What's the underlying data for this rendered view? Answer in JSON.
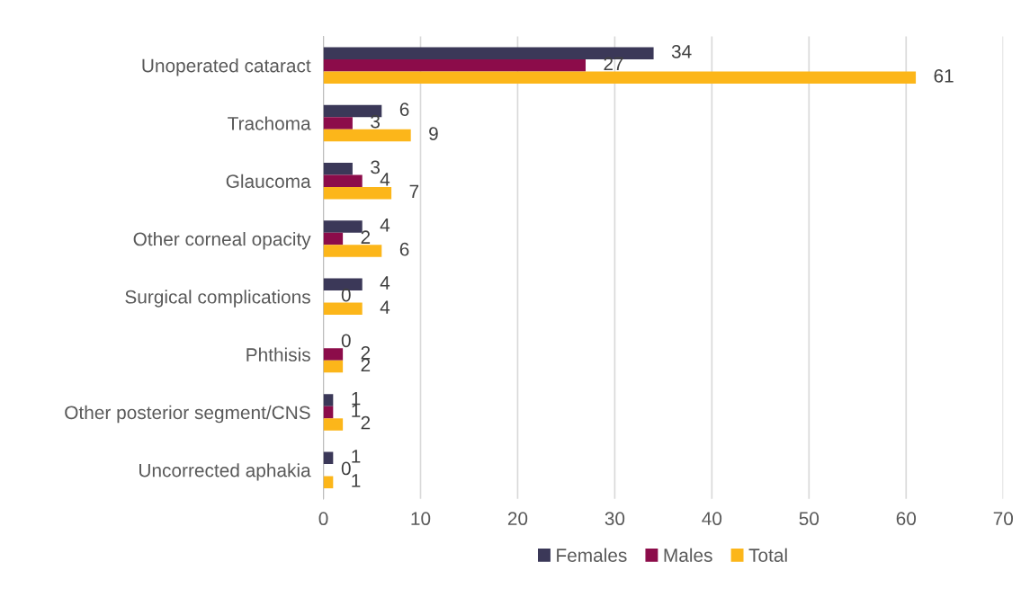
{
  "chart_data": {
    "type": "bar",
    "orientation": "horizontal",
    "categories": [
      "Unoperated cataract",
      "Trachoma",
      "Glaucoma",
      "Other corneal opacity",
      "Surgical complications",
      "Phthisis",
      "Other posterior segment/CNS",
      "Uncorrected aphakia"
    ],
    "series": [
      {
        "name": "Females",
        "color": "#3b3858",
        "values": [
          34,
          6,
          3,
          4,
          4,
          0,
          1,
          1
        ]
      },
      {
        "name": "Males",
        "color": "#8c0c4a",
        "values": [
          27,
          3,
          4,
          2,
          0,
          2,
          1,
          0
        ]
      },
      {
        "name": "Total",
        "color": "#fcb61a",
        "values": [
          61,
          9,
          7,
          6,
          4,
          2,
          2,
          1
        ]
      }
    ],
    "xlim": [
      0,
      70
    ],
    "xticks": [
      0,
      10,
      20,
      30,
      40,
      50,
      60,
      70
    ],
    "grid": "x",
    "legend": "bottom",
    "data_labels": true
  }
}
